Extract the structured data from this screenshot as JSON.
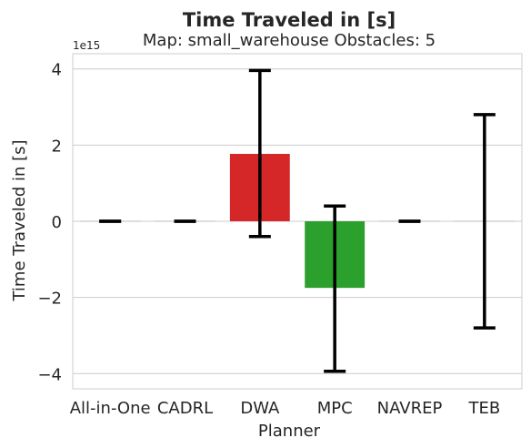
{
  "chart_data": {
    "type": "bar",
    "title": "Time Traveled in [s]",
    "subtitle": "Map: small_warehouse Obstacles: 5",
    "xlabel": "Planner",
    "ylabel": "Time Traveled in [s]",
    "offset_label": "1e15",
    "categories": [
      "All-in-One",
      "CADRL",
      "DWA",
      "MPC",
      "NAVREP",
      "TEB"
    ],
    "values": [
      0,
      0,
      1.77,
      -1.75,
      0,
      0
    ],
    "error_low": [
      0,
      0,
      -0.4,
      -3.94,
      0,
      -2.8
    ],
    "error_high": [
      0,
      0,
      3.96,
      0.4,
      0,
      2.8
    ],
    "colors": [
      "#1f77b4",
      "#ff7f0e",
      "#d62728",
      "#2ca02c",
      "#9467bd",
      "#8c564b"
    ],
    "y_ticks": [
      -4,
      -2,
      0,
      2,
      4
    ],
    "y_tick_labels": [
      "−4",
      "−2",
      "0",
      "2",
      "4"
    ],
    "ylim": [
      -4.4,
      4.4
    ],
    "grid": true
  }
}
